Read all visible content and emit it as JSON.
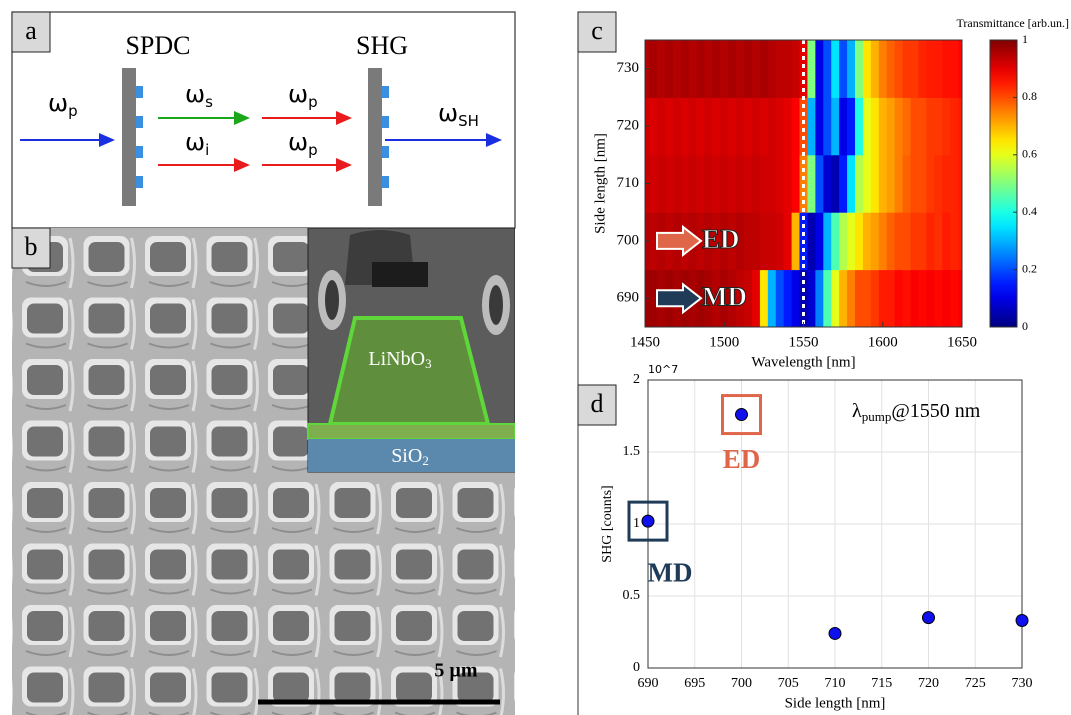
{
  "panel_labels": [
    "a",
    "b",
    "c",
    "d"
  ],
  "panel_a": {
    "left_title": "SPDC",
    "right_title": "SHG",
    "beams": [
      {
        "symbol": "ω",
        "sub": "p",
        "color": "#1a2fe0"
      },
      {
        "symbol": "ω",
        "sub": "s",
        "color": "#1aa81a"
      },
      {
        "symbol": "ω",
        "sub": "i",
        "color": "#e81c1c"
      },
      {
        "symbol": "ω",
        "sub": "p",
        "color": "#e81c1c"
      },
      {
        "symbol": "ω",
        "sub": "p",
        "color": "#e81c1c"
      },
      {
        "symbol": "ω",
        "sub": "SH",
        "color": "#1a2fe0"
      }
    ]
  },
  "panel_b": {
    "core": {
      "main": "LiNbO",
      "sub": "3"
    },
    "substrate": {
      "main": "SiO",
      "sub": "2"
    },
    "scale_bar": "5 µm"
  },
  "chart_data": [
    {
      "type": "heatmap",
      "xlabel": "Wavelength [nm]",
      "ylabel": "Side length [nm]",
      "colorbar_label": "Transmittance [arb.un.]",
      "colormap": "jet",
      "x": [
        1450,
        1455,
        1460,
        1465,
        1470,
        1475,
        1480,
        1485,
        1490,
        1495,
        1500,
        1505,
        1510,
        1515,
        1520,
        1525,
        1530,
        1535,
        1540,
        1545,
        1550,
        1555,
        1560,
        1565,
        1570,
        1575,
        1580,
        1585,
        1590,
        1595,
        1600,
        1605,
        1610,
        1615,
        1620,
        1625,
        1630,
        1635,
        1640,
        1645,
        1650
      ],
      "y": [
        690,
        700,
        710,
        720,
        730
      ],
      "z": [
        [
          0.97,
          0.97,
          0.96,
          0.97,
          0.96,
          0.97,
          0.96,
          0.97,
          0.96,
          0.95,
          0.96,
          0.95,
          0.94,
          0.93,
          0.9,
          0.65,
          0.3,
          0.2,
          0.15,
          0.1,
          0.05,
          0.08,
          0.25,
          0.45,
          0.6,
          0.7,
          0.75,
          0.8,
          0.8,
          0.82,
          0.85,
          0.85,
          0.87,
          0.86,
          0.88,
          0.87,
          0.88,
          0.87,
          0.88,
          0.87,
          0.88
        ],
        [
          0.95,
          0.94,
          0.95,
          0.94,
          0.95,
          0.94,
          0.95,
          0.94,
          0.95,
          0.94,
          0.95,
          0.94,
          0.95,
          0.94,
          0.94,
          0.93,
          0.93,
          0.92,
          0.9,
          0.7,
          0.15,
          0.05,
          0.1,
          0.3,
          0.45,
          0.55,
          0.6,
          0.65,
          0.7,
          0.72,
          0.75,
          0.78,
          0.8,
          0.8,
          0.82,
          0.82,
          0.84,
          0.83,
          0.85,
          0.84,
          0.85
        ],
        [
          0.93,
          0.92,
          0.93,
          0.92,
          0.93,
          0.92,
          0.93,
          0.92,
          0.93,
          0.92,
          0.93,
          0.92,
          0.93,
          0.92,
          0.93,
          0.92,
          0.92,
          0.91,
          0.9,
          0.88,
          0.75,
          0.5,
          0.2,
          0.08,
          0.05,
          0.15,
          0.35,
          0.55,
          0.6,
          0.65,
          0.7,
          0.72,
          0.75,
          0.78,
          0.8,
          0.8,
          0.82,
          0.83,
          0.84,
          0.84,
          0.85
        ],
        [
          0.92,
          0.91,
          0.92,
          0.91,
          0.92,
          0.91,
          0.92,
          0.91,
          0.92,
          0.91,
          0.92,
          0.91,
          0.92,
          0.91,
          0.92,
          0.91,
          0.92,
          0.91,
          0.9,
          0.88,
          0.8,
          0.3,
          0.1,
          0.2,
          0.3,
          0.1,
          0.15,
          0.4,
          0.6,
          0.65,
          0.7,
          0.72,
          0.75,
          0.77,
          0.8,
          0.8,
          0.82,
          0.82,
          0.83,
          0.84,
          0.85
        ],
        [
          0.95,
          0.96,
          0.95,
          0.96,
          0.95,
          0.96,
          0.95,
          0.96,
          0.95,
          0.96,
          0.95,
          0.96,
          0.95,
          0.96,
          0.95,
          0.96,
          0.95,
          0.94,
          0.94,
          0.93,
          0.9,
          0.5,
          0.1,
          0.2,
          0.35,
          0.2,
          0.3,
          0.5,
          0.65,
          0.7,
          0.75,
          0.78,
          0.8,
          0.82,
          0.82,
          0.84,
          0.85,
          0.85,
          0.86,
          0.86,
          0.87
        ]
      ],
      "xlim": [
        1450,
        1650
      ],
      "ylim": [
        685,
        735
      ],
      "xticks": [
        1450,
        1500,
        1550,
        1600,
        1650
      ],
      "yticks": [
        690,
        700,
        710,
        720,
        730
      ],
      "clim": [
        0,
        1
      ],
      "cticks": [
        0,
        0.2,
        0.4,
        0.6,
        0.8,
        1
      ],
      "marker_line": 1550,
      "marker_line_color": "#ffffff",
      "annotations": [
        {
          "text": "ED",
          "y": 700,
          "color": "#e0664a"
        },
        {
          "text": "MD",
          "y": 690,
          "color": "#1f3b57"
        }
      ]
    },
    {
      "type": "scatter",
      "xlabel": "Side length [nm]",
      "ylabel": "SHG [counts]",
      "y_offset_label": "10^7",
      "x": [
        690,
        700,
        710,
        720,
        730
      ],
      "values": [
        1.02,
        1.76,
        0.24,
        0.35,
        0.33
      ],
      "color": "#1010ee",
      "grid": true,
      "xlim": [
        690,
        730
      ],
      "ylim": [
        0,
        2
      ],
      "xticks": [
        690,
        695,
        700,
        705,
        710,
        715,
        720,
        725,
        730
      ],
      "yticks": [
        0,
        0.5,
        1,
        1.5,
        2
      ],
      "annotation": {
        "pre": "λ",
        "sub": "pump",
        "post": "@1550 nm"
      },
      "highlights": [
        {
          "x": 700,
          "label": "ED",
          "color": "#e0664a"
        },
        {
          "x": 690,
          "label": "MD",
          "color": "#1f3b57"
        }
      ]
    }
  ]
}
